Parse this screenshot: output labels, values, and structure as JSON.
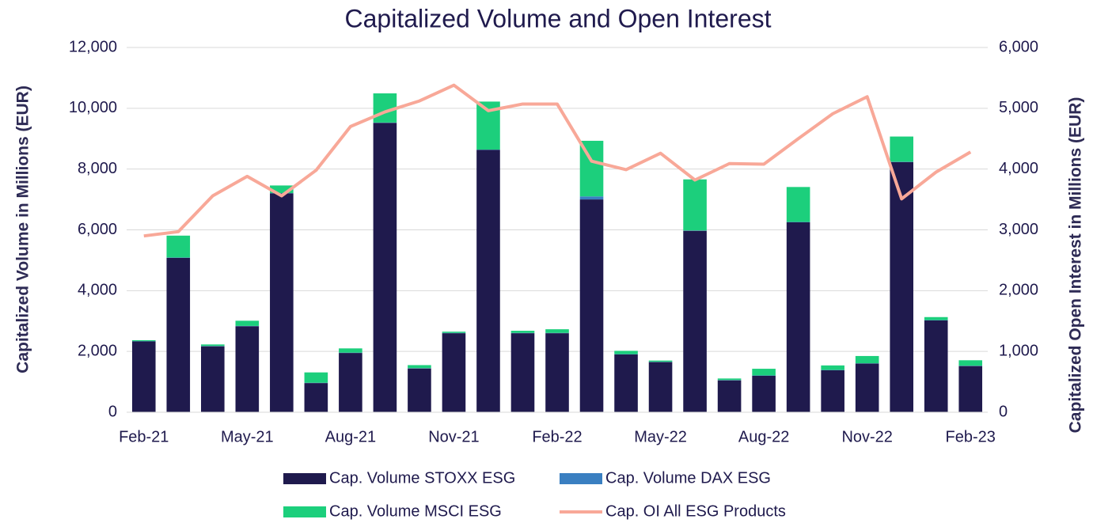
{
  "chart_data": {
    "type": "bar-line",
    "title": "Capitalized Volume and Open Interest",
    "y_label": "Capitalized Volume in Millions (EUR)",
    "y2_label": "Capitalized Open Interest in Millions (EUR)",
    "stacked": true,
    "grid": true,
    "legend": "bottom",
    "categories": [
      "Feb-21",
      null,
      null,
      "May-21",
      null,
      null,
      "Aug-21",
      null,
      null,
      "Nov-21",
      null,
      null,
      "Feb-22",
      null,
      null,
      "May-22",
      null,
      null,
      "Aug-22",
      null,
      null,
      "Nov-22",
      null,
      null,
      "Feb-23"
    ],
    "ylim": [
      0,
      12000
    ],
    "yticks": [
      0,
      {
        "value": 2000,
        "label": "2,000"
      },
      {
        "value": 4000,
        "label": "4,000"
      },
      {
        "value": 6000,
        "label": "6,000"
      },
      {
        "value": 8000,
        "label": "8,000"
      },
      {
        "value": 10000,
        "label": "10,000"
      },
      {
        "value": 12000,
        "label": "12,000"
      }
    ],
    "y2lim": [
      0,
      6000
    ],
    "y2ticks": [
      0,
      {
        "value": 1000,
        "label": "1,000"
      },
      {
        "value": 2000,
        "label": "2,000"
      },
      {
        "value": 3000,
        "label": "3,000"
      },
      {
        "value": 4000,
        "label": "4,000"
      },
      {
        "value": 5000,
        "label": "5,000"
      },
      {
        "value": 6000,
        "label": "6,000"
      }
    ],
    "series": [
      {
        "name": "Cap. Volume STOXX ESG",
        "type": "bar",
        "color": "#1f1a4d",
        "values": [
          2330,
          5080,
          2170,
          2830,
          7200,
          960,
          1950,
          9520,
          1440,
          2600,
          8630,
          2600,
          2600,
          7000,
          1900,
          1650,
          5970,
          1050,
          1200,
          6250,
          1380,
          1600,
          8230,
          3020,
          1520
        ]
      },
      {
        "name": "Cap. Volume DAX ESG",
        "type": "bar",
        "color": "#3a7fc1",
        "values": [
          10,
          10,
          10,
          10,
          10,
          10,
          10,
          10,
          10,
          10,
          10,
          10,
          10,
          100,
          10,
          10,
          10,
          10,
          10,
          10,
          10,
          10,
          10,
          10,
          10
        ]
      },
      {
        "name": "Cap. Volume MSCI ESG",
        "type": "bar",
        "color": "#1ccf7c",
        "values": [
          30,
          720,
          50,
          170,
          250,
          340,
          140,
          960,
          100,
          40,
          1580,
          70,
          120,
          1830,
          110,
          40,
          1680,
          50,
          220,
          1150,
          150,
          240,
          830,
          100,
          180
        ]
      },
      {
        "name": "Cap. OI All ESG Products",
        "type": "line",
        "axis": "y2",
        "color": "#f8a898",
        "values": [
          2900,
          2970,
          3560,
          3880,
          3560,
          3980,
          4700,
          4940,
          5120,
          5380,
          4960,
          5070,
          5070,
          4130,
          3990,
          4260,
          3820,
          4090,
          4080,
          4500,
          4910,
          5190,
          3510,
          3950,
          4280
        ]
      }
    ]
  }
}
